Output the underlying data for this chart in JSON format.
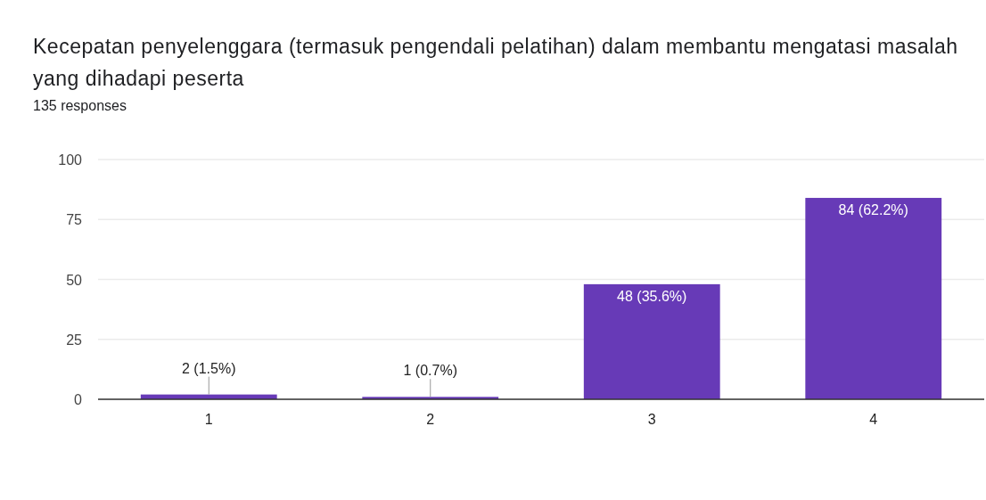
{
  "chart_data": {
    "type": "bar",
    "title": "Kecepatan penyelenggara (termasuk pengendali pelatihan) dalam membantu mengatasi masalah yang dihadapi peserta",
    "subtitle": "135 responses",
    "categories": [
      "1",
      "2",
      "3",
      "4"
    ],
    "values": [
      2,
      1,
      48,
      84
    ],
    "color": "#673ab7",
    "value_labels": [
      "2 (1.5%)",
      "1 (0.7%)",
      "48 (35.6%)",
      "84 (62.2%)"
    ],
    "ylim": [
      0,
      100
    ],
    "yticks": [
      0,
      25,
      50,
      75,
      100
    ],
    "grid": "y"
  }
}
